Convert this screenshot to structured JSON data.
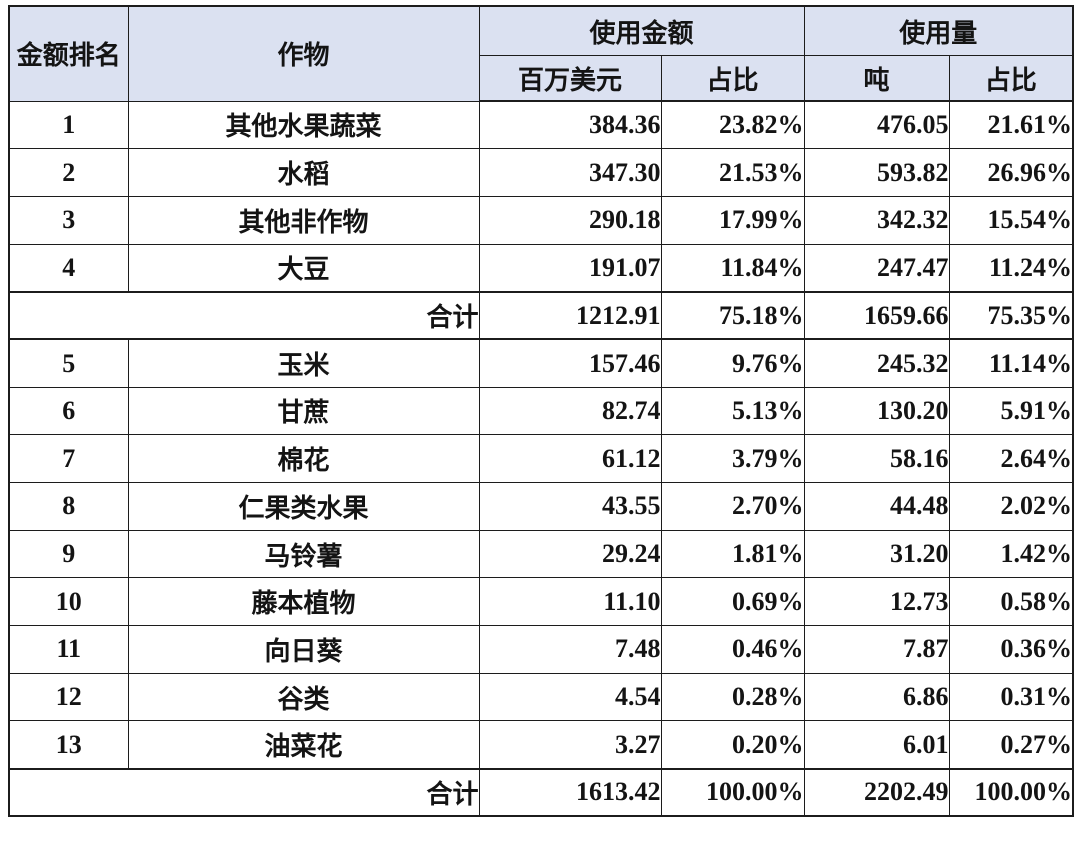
{
  "table": {
    "header": {
      "rank": "金额排名",
      "crop": "作物",
      "amount_group": "使用金额",
      "amount_unit": "百万美元",
      "amount_share": "占比",
      "volume_group": "使用量",
      "volume_unit": "吨",
      "volume_share": "占比"
    },
    "rows": [
      {
        "rank": "1",
        "crop": "其他水果蔬菜",
        "amount": "384.36",
        "amount_pct": "23.82%",
        "volume": "476.05",
        "volume_pct": "21.61%"
      },
      {
        "rank": "2",
        "crop": "水稻",
        "amount": "347.30",
        "amount_pct": "21.53%",
        "volume": "593.82",
        "volume_pct": "26.96%"
      },
      {
        "rank": "3",
        "crop": "其他非作物",
        "amount": "290.18",
        "amount_pct": "17.99%",
        "volume": "342.32",
        "volume_pct": "15.54%"
      },
      {
        "rank": "4",
        "crop": "大豆",
        "amount": "191.07",
        "amount_pct": "11.84%",
        "volume": "247.47",
        "volume_pct": "11.24%",
        "thick_bottom": true
      },
      {
        "type": "subtotal",
        "label": "合计",
        "amount": "1212.91",
        "amount_pct": "75.18%",
        "volume": "1659.66",
        "volume_pct": "75.35%",
        "thick_bottom": true
      },
      {
        "rank": "5",
        "crop": "玉米",
        "amount": "157.46",
        "amount_pct": "9.76%",
        "volume": "245.32",
        "volume_pct": "11.14%"
      },
      {
        "rank": "6",
        "crop": "甘蔗",
        "amount": "82.74",
        "amount_pct": "5.13%",
        "volume": "130.20",
        "volume_pct": "5.91%"
      },
      {
        "rank": "7",
        "crop": "棉花",
        "amount": "61.12",
        "amount_pct": "3.79%",
        "volume": "58.16",
        "volume_pct": "2.64%"
      },
      {
        "rank": "8",
        "crop": "仁果类水果",
        "amount": "43.55",
        "amount_pct": "2.70%",
        "volume": "44.48",
        "volume_pct": "2.02%"
      },
      {
        "rank": "9",
        "crop": "马铃薯",
        "amount": "29.24",
        "amount_pct": "1.81%",
        "volume": "31.20",
        "volume_pct": "1.42%"
      },
      {
        "rank": "10",
        "crop": "藤本植物",
        "amount": "11.10",
        "amount_pct": "0.69%",
        "volume": "12.73",
        "volume_pct": "0.58%"
      },
      {
        "rank": "11",
        "crop": "向日葵",
        "amount": "7.48",
        "amount_pct": "0.46%",
        "volume": "7.87",
        "volume_pct": "0.36%"
      },
      {
        "rank": "12",
        "crop": "谷类",
        "amount": "4.54",
        "amount_pct": "0.28%",
        "volume": "6.86",
        "volume_pct": "0.31%"
      },
      {
        "rank": "13",
        "crop": "油菜花",
        "amount": "3.27",
        "amount_pct": "0.20%",
        "volume": "6.01",
        "volume_pct": "0.27%",
        "thick_bottom": true
      },
      {
        "type": "total",
        "label": "合计",
        "amount": "1613.42",
        "amount_pct": "100.00%",
        "volume": "2202.49",
        "volume_pct": "100.00%"
      }
    ],
    "colors": {
      "header_bg": "#dbe1f1",
      "border": "#1c1c1c",
      "text": "#141414",
      "page_bg": "#ffffff"
    }
  },
  "chart_data": {
    "type": "table",
    "title": "",
    "columns": [
      "金额排名",
      "作物",
      "使用金额 百万美元",
      "使用金额 占比",
      "使用量 吨",
      "使用量 占比"
    ],
    "rows": [
      [
        "1",
        "其他水果蔬菜",
        "384.36",
        "23.82%",
        "476.05",
        "21.61%"
      ],
      [
        "2",
        "水稻",
        "347.30",
        "21.53%",
        "593.82",
        "26.96%"
      ],
      [
        "3",
        "其他非作物",
        "290.18",
        "17.99%",
        "342.32",
        "15.54%"
      ],
      [
        "4",
        "大豆",
        "191.07",
        "11.84%",
        "247.47",
        "11.24%"
      ],
      [
        "",
        "合计",
        "1212.91",
        "75.18%",
        "1659.66",
        "75.35%"
      ],
      [
        "5",
        "玉米",
        "157.46",
        "9.76%",
        "245.32",
        "11.14%"
      ],
      [
        "6",
        "甘蔗",
        "82.74",
        "5.13%",
        "130.20",
        "5.91%"
      ],
      [
        "7",
        "棉花",
        "61.12",
        "3.79%",
        "58.16",
        "2.64%"
      ],
      [
        "8",
        "仁果类水果",
        "43.55",
        "2.70%",
        "44.48",
        "2.02%"
      ],
      [
        "9",
        "马铃薯",
        "29.24",
        "1.81%",
        "31.20",
        "1.42%"
      ],
      [
        "10",
        "藤本植物",
        "11.10",
        "0.69%",
        "12.73",
        "0.58%"
      ],
      [
        "11",
        "向日葵",
        "7.48",
        "0.46%",
        "7.87",
        "0.36%"
      ],
      [
        "12",
        "谷类",
        "4.54",
        "0.28%",
        "6.86",
        "0.31%"
      ],
      [
        "13",
        "油菜花",
        "3.27",
        "0.20%",
        "6.01",
        "0.27%"
      ],
      [
        "",
        "合计",
        "1613.42",
        "100.00%",
        "2202.49",
        "100.00%"
      ]
    ]
  }
}
